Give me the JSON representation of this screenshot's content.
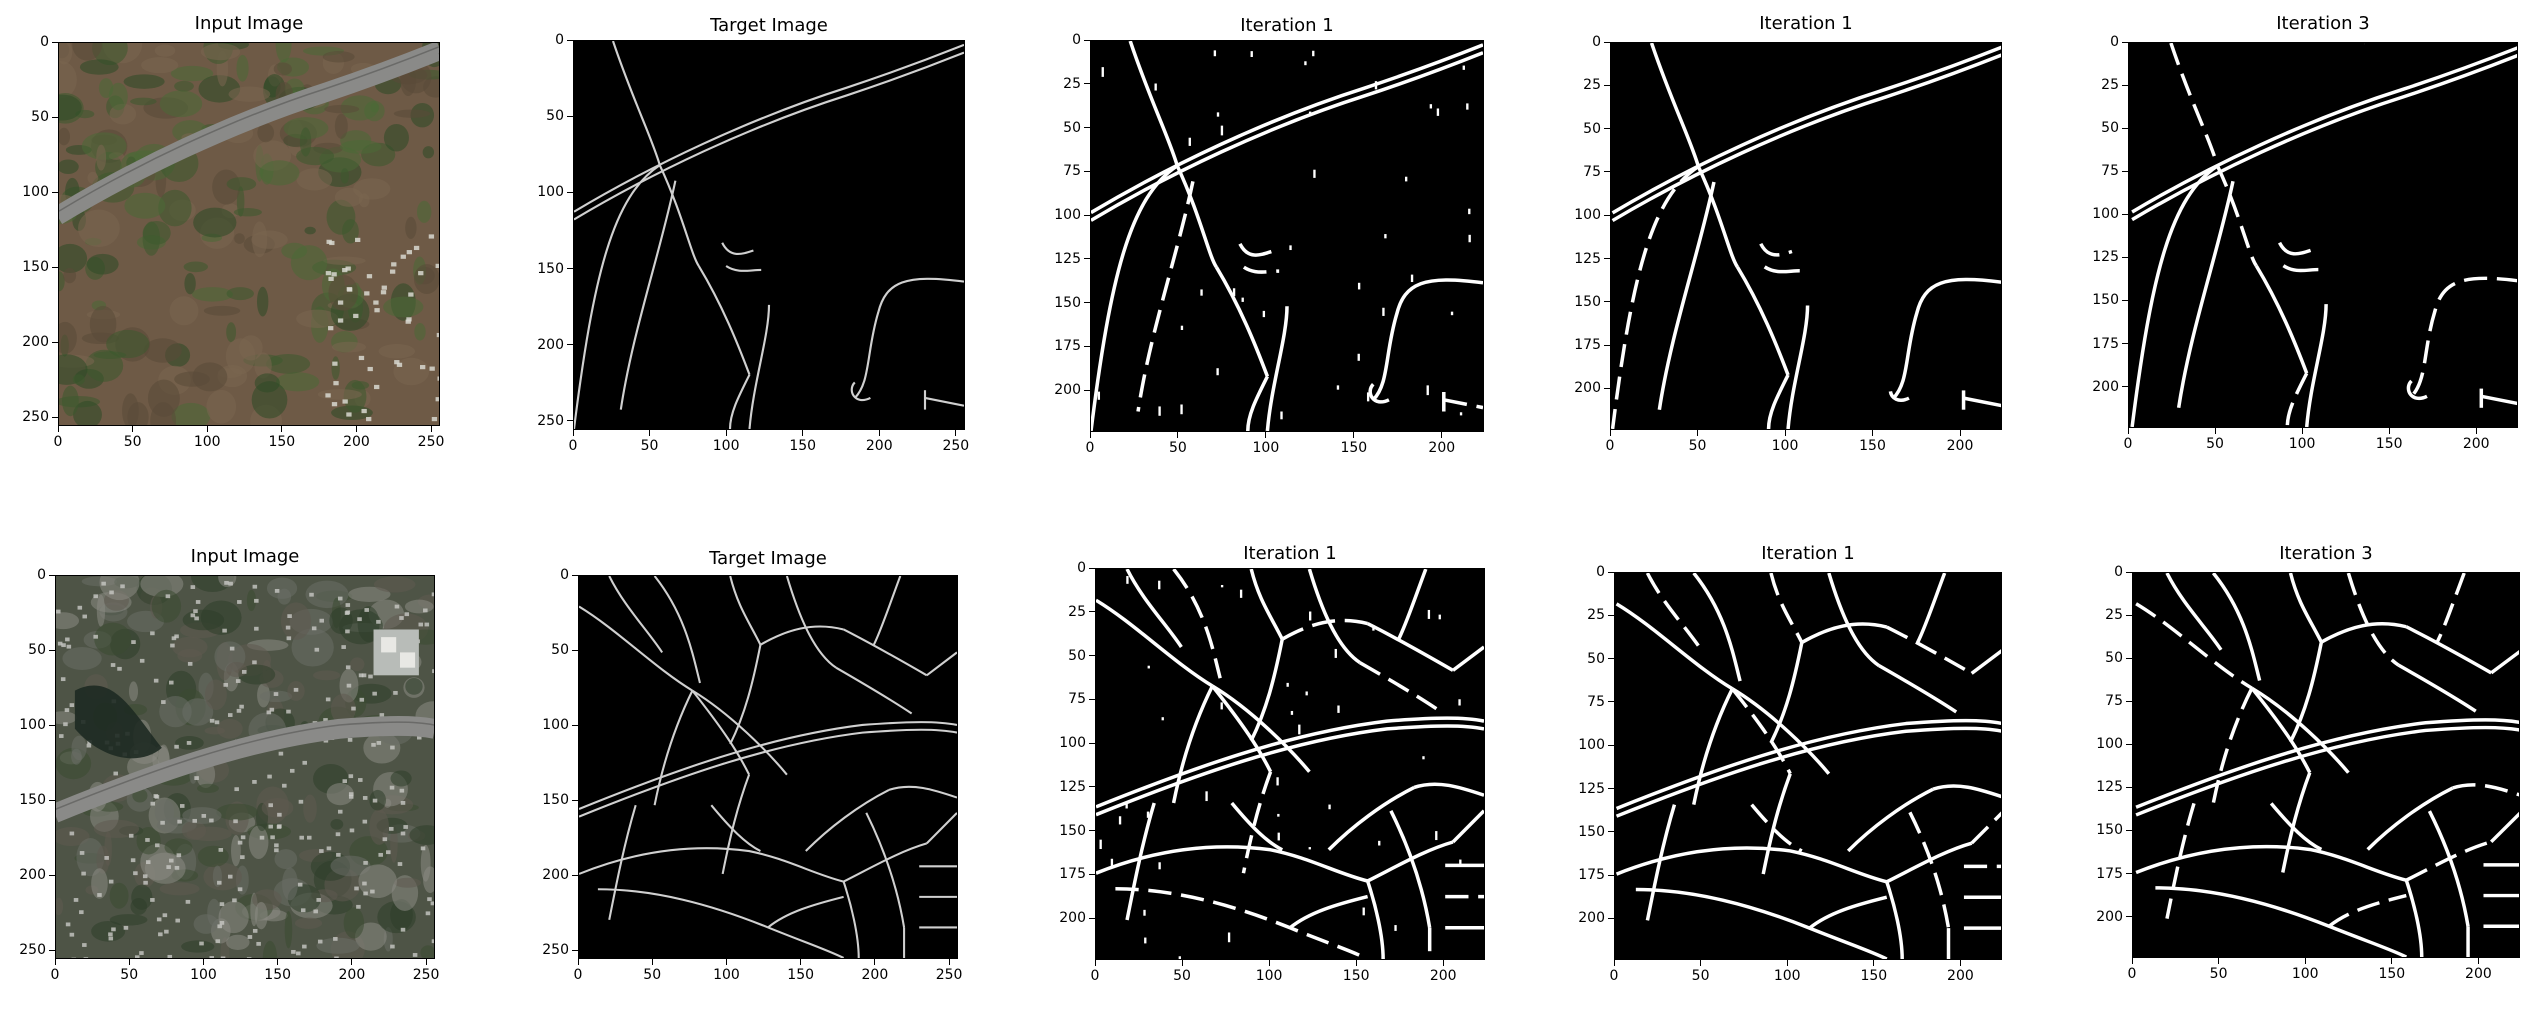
{
  "rows": [
    {
      "panels": [
        {
          "kind": "input",
          "title": "Input Image",
          "xticks": [
            "0",
            "50",
            "100",
            "150",
            "200",
            "250"
          ],
          "yticks": [
            "0",
            "50",
            "100",
            "150",
            "200",
            "250"
          ],
          "extent": 256,
          "scene": "rural"
        },
        {
          "kind": "target",
          "title": "Target Image",
          "xticks": [
            "0",
            "50",
            "100",
            "150",
            "200",
            "250"
          ],
          "yticks": [
            "0",
            "50",
            "100",
            "150",
            "200",
            "250"
          ],
          "extent": 256
        },
        {
          "kind": "pred",
          "title": "Iteration 1",
          "xticks": [
            "0",
            "50",
            "100",
            "150",
            "200"
          ],
          "yticks": [
            "0",
            "25",
            "50",
            "75",
            "100",
            "125",
            "150",
            "175",
            "200"
          ],
          "extent": 224
        },
        {
          "kind": "pred",
          "title": "Iteration 1",
          "xticks": [
            "0",
            "50",
            "100",
            "150",
            "200"
          ],
          "yticks": [
            "0",
            "25",
            "50",
            "75",
            "100",
            "125",
            "150",
            "175",
            "200"
          ],
          "extent": 224
        },
        {
          "kind": "pred",
          "title": "Iteration 3",
          "xticks": [
            "0",
            "50",
            "100",
            "150",
            "200"
          ],
          "yticks": [
            "0",
            "25",
            "50",
            "75",
            "100",
            "125",
            "150",
            "175",
            "200"
          ],
          "extent": 224
        }
      ]
    },
    {
      "panels": [
        {
          "kind": "input",
          "title": "Input Image",
          "xticks": [
            "0",
            "50",
            "100",
            "150",
            "200",
            "250"
          ],
          "yticks": [
            "0",
            "50",
            "100",
            "150",
            "200",
            "250"
          ],
          "extent": 256,
          "scene": "suburban"
        },
        {
          "kind": "target",
          "title": "Target Image",
          "xticks": [
            "0",
            "50",
            "100",
            "150",
            "200",
            "250"
          ],
          "yticks": [
            "0",
            "50",
            "100",
            "150",
            "200",
            "250"
          ],
          "extent": 256
        },
        {
          "kind": "pred",
          "title": "Iteration 1",
          "xticks": [
            "0",
            "50",
            "100",
            "150",
            "200"
          ],
          "yticks": [
            "0",
            "25",
            "50",
            "75",
            "100",
            "125",
            "150",
            "175",
            "200"
          ],
          "extent": 224
        },
        {
          "kind": "pred",
          "title": "Iteration 1",
          "xticks": [
            "0",
            "50",
            "100",
            "150",
            "200"
          ],
          "yticks": [
            "0",
            "25",
            "50",
            "75",
            "100",
            "125",
            "150",
            "175",
            "200"
          ],
          "extent": 224
        },
        {
          "kind": "pred",
          "title": "Iteration 3",
          "xticks": [
            "0",
            "50",
            "100",
            "150",
            "200"
          ],
          "yticks": [
            "0",
            "25",
            "50",
            "75",
            "100",
            "125",
            "150",
            "175",
            "200"
          ],
          "extent": 224
        }
      ]
    }
  ],
  "colors": {
    "background": "#000000",
    "road_target": "#d0d0d0",
    "road_pred": "#ffffff",
    "aerial_rural": "#6e5a46",
    "aerial_suburban": "#4e5446",
    "highway": "#8a8a88"
  }
}
